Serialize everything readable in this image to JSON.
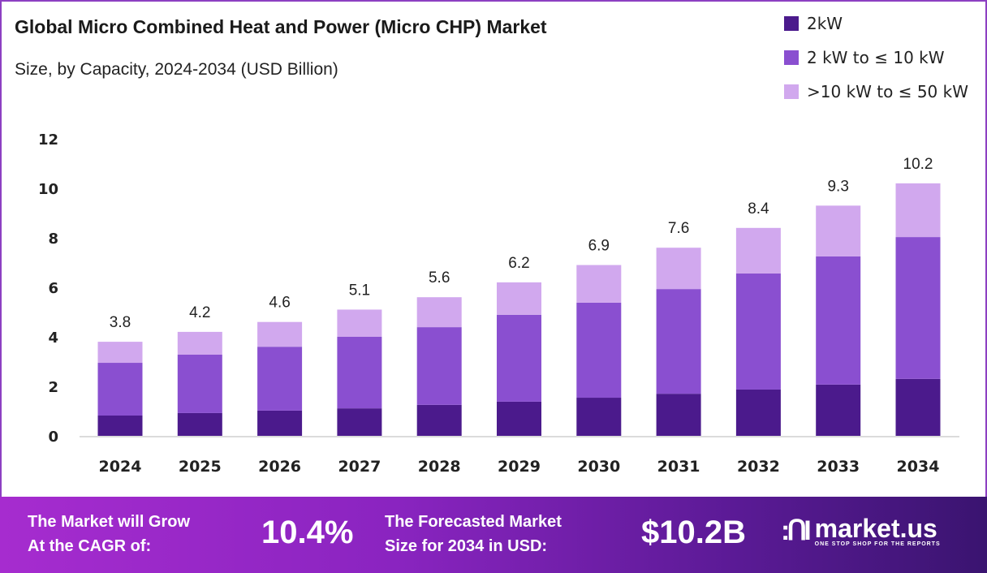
{
  "header": {
    "title": "Global Micro Combined Heat and Power (Micro CHP) Market",
    "subtitle": "Size, by Capacity, 2024-2034 (USD Billion)"
  },
  "chart_data": {
    "type": "bar",
    "stacked": true,
    "title": "Global Micro Combined Heat and Power (Micro CHP) Market",
    "subtitle": "Size, by Capacity, 2024-2034 (USD Billion)",
    "categories": [
      "2024",
      "2025",
      "2026",
      "2027",
      "2028",
      "2029",
      "2030",
      "2031",
      "2032",
      "2033",
      "2034"
    ],
    "series": [
      {
        "name": "2kW",
        "color": "#4b1a8c",
        "values": [
          0.82,
          0.92,
          1.02,
          1.11,
          1.25,
          1.38,
          1.54,
          1.7,
          1.87,
          2.07,
          2.3
        ]
      },
      {
        "name": "2 kW to ≤ 10 kW",
        "color": "#8a4fd0",
        "values": [
          2.13,
          2.36,
          2.58,
          2.89,
          3.14,
          3.51,
          3.84,
          4.23,
          4.69,
          5.18,
          5.73
        ]
      },
      {
        "name": ">10 kW to ≤ 50 kW",
        "color": "#d1a8ee",
        "values": [
          0.85,
          0.92,
          1.0,
          1.1,
          1.21,
          1.31,
          1.52,
          1.67,
          1.84,
          2.05,
          2.17
        ]
      }
    ],
    "totals": [
      "3.8",
      "4.2",
      "4.6",
      "5.1",
      "5.6",
      "6.2",
      "6.9",
      "7.6",
      "8.4",
      "9.3",
      "10.2"
    ],
    "ylim": [
      0,
      12
    ],
    "yticks": [
      "0",
      "2",
      "4",
      "6",
      "8",
      "10",
      "12"
    ],
    "grid": false,
    "legend": "top-right"
  },
  "footer": {
    "cagr_label_1": "The Market will Grow",
    "cagr_label_2": "At the CAGR of:",
    "cagr_value": "10.4%",
    "forecast_label_1": "The Forecasted Market",
    "forecast_label_2": "Size for 2034 in USD:",
    "forecast_value": "$10.2B",
    "logo_name": "market.us",
    "logo_tagline": "ONE STOP SHOP FOR THE REPORTS"
  }
}
